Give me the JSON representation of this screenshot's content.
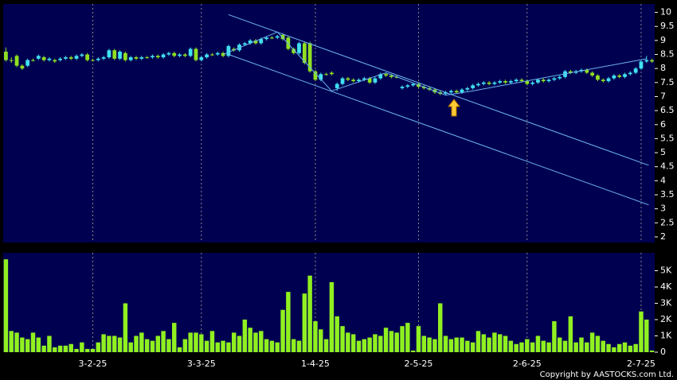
{
  "chart_data": {
    "type": "candlestick",
    "xlim": [
      -0.5,
      119.5
    ],
    "xticks": [
      {
        "value": 16,
        "label": "3-2-25"
      },
      {
        "value": 36,
        "label": "3-3-25"
      },
      {
        "value": 57,
        "label": "1-4-25"
      },
      {
        "value": 76,
        "label": "2-5-25"
      },
      {
        "value": 96,
        "label": "2-6-25"
      },
      {
        "value": 117,
        "label": "2-7-25"
      }
    ],
    "ylim": [
      1.8,
      10.3
    ],
    "yticks": [
      2,
      2.5,
      3,
      3.5,
      4,
      4.5,
      5,
      5.5,
      6,
      6.5,
      7,
      7.5,
      8,
      8.5,
      9,
      9.5,
      10
    ],
    "up_color": "#40e0f0",
    "down_color": "#90e020",
    "open": [
      8.6,
      8.3,
      8.45,
      8.1,
      8.1,
      8.3,
      8.35,
      8.4,
      8.3,
      8.3,
      8.3,
      8.35,
      8.4,
      8.35,
      8.45,
      8.5,
      8.3,
      8.3,
      8.35,
      8.4,
      8.65,
      8.35,
      8.55,
      8.3,
      8.4,
      8.35,
      8.4,
      8.4,
      8.45,
      8.4,
      8.5,
      8.55,
      8.45,
      8.5,
      8.45,
      8.7,
      8.3,
      8.4,
      8.5,
      8.5,
      8.55,
      8.45,
      8.7,
      8.65,
      8.85,
      8.9,
      9.0,
      8.9,
      9.05,
      9.1,
      9.1,
      9.2,
      9.1,
      8.7,
      8.55,
      8.9,
      8.9,
      7.9,
      7.6,
      7.8,
      7.85,
      7.3,
      7.45,
      7.65,
      7.6,
      7.55,
      7.6,
      7.65,
      7.5,
      7.65,
      7.8,
      7.75,
      7.7,
      7.3,
      7.35,
      7.4,
      7.45,
      7.35,
      7.3,
      7.25,
      7.15,
      7.1,
      7.15,
      7.2,
      7.15,
      7.25,
      7.3,
      7.4,
      7.45,
      7.5,
      7.45,
      7.5,
      7.55,
      7.5,
      7.55,
      7.6,
      7.55,
      7.45,
      7.5,
      7.6,
      7.55,
      7.6,
      7.65,
      7.7,
      7.9,
      7.85,
      7.9,
      7.95,
      7.85,
      7.75,
      7.6,
      7.55,
      7.65,
      7.75,
      7.7,
      7.8,
      7.85,
      8.0,
      8.25,
      8.3
    ],
    "high": [
      8.75,
      8.4,
      8.5,
      8.15,
      8.35,
      8.35,
      8.5,
      8.45,
      8.4,
      8.35,
      8.4,
      8.45,
      8.45,
      8.5,
      8.55,
      8.55,
      8.35,
      8.4,
      8.45,
      8.7,
      8.7,
      8.65,
      8.6,
      8.45,
      8.45,
      8.45,
      8.45,
      8.5,
      8.5,
      8.55,
      8.6,
      8.6,
      8.55,
      8.55,
      8.75,
      8.75,
      8.45,
      8.55,
      8.55,
      8.6,
      8.6,
      8.85,
      8.75,
      8.9,
      8.95,
      9.05,
      9.05,
      9.1,
      9.15,
      9.15,
      9.2,
      9.25,
      9.15,
      8.75,
      8.95,
      8.95,
      8.95,
      7.95,
      7.85,
      7.85,
      7.9,
      7.5,
      7.7,
      7.7,
      7.65,
      7.65,
      7.7,
      7.7,
      7.7,
      7.85,
      7.85,
      7.8,
      7.75,
      7.4,
      7.45,
      7.5,
      7.5,
      7.4,
      7.35,
      7.3,
      7.2,
      7.2,
      7.25,
      7.25,
      7.3,
      7.35,
      7.45,
      7.5,
      7.55,
      7.55,
      7.55,
      7.6,
      7.6,
      7.6,
      7.65,
      7.65,
      7.6,
      7.55,
      7.65,
      7.65,
      7.65,
      7.7,
      7.75,
      7.95,
      7.95,
      7.95,
      8.0,
      8.0,
      7.9,
      7.8,
      7.65,
      7.7,
      7.8,
      7.8,
      7.85,
      7.9,
      8.05,
      8.3,
      8.45,
      8.35
    ],
    "low": [
      8.25,
      8.2,
      8.05,
      7.95,
      8.05,
      8.25,
      8.3,
      8.25,
      8.25,
      8.2,
      8.25,
      8.3,
      8.3,
      8.3,
      8.4,
      8.25,
      8.25,
      8.25,
      8.3,
      8.35,
      8.3,
      8.3,
      8.25,
      8.25,
      8.3,
      8.3,
      8.35,
      8.35,
      8.35,
      8.35,
      8.45,
      8.4,
      8.4,
      8.4,
      8.4,
      8.25,
      8.25,
      8.35,
      8.45,
      8.45,
      8.4,
      8.4,
      8.6,
      8.6,
      8.8,
      8.85,
      8.85,
      8.85,
      9.0,
      9.05,
      9.05,
      9.0,
      8.65,
      8.5,
      8.5,
      8.15,
      7.85,
      7.55,
      7.55,
      7.75,
      7.75,
      7.2,
      7.4,
      7.55,
      7.5,
      7.5,
      7.55,
      7.45,
      7.45,
      7.6,
      7.7,
      7.65,
      7.65,
      7.25,
      7.3,
      7.35,
      7.3,
      7.25,
      7.2,
      7.1,
      7.05,
      7.05,
      7.1,
      7.1,
      7.1,
      7.2,
      7.25,
      7.35,
      7.4,
      7.4,
      7.4,
      7.45,
      7.45,
      7.45,
      7.5,
      7.5,
      7.4,
      7.4,
      7.45,
      7.5,
      7.5,
      7.55,
      7.6,
      7.65,
      7.8,
      7.8,
      7.85,
      7.8,
      7.7,
      7.55,
      7.5,
      7.5,
      7.6,
      7.65,
      7.65,
      7.75,
      7.8,
      7.95,
      8.2,
      8.2
    ],
    "close": [
      8.3,
      8.3,
      8.1,
      8.0,
      8.3,
      8.3,
      8.45,
      8.3,
      8.35,
      8.25,
      8.35,
      8.4,
      8.35,
      8.45,
      8.5,
      8.3,
      8.3,
      8.35,
      8.4,
      8.65,
      8.35,
      8.6,
      8.3,
      8.4,
      8.35,
      8.4,
      8.4,
      8.45,
      8.4,
      8.5,
      8.55,
      8.45,
      8.5,
      8.45,
      8.7,
      8.3,
      8.4,
      8.5,
      8.5,
      8.55,
      8.45,
      8.8,
      8.65,
      8.85,
      8.9,
      9.0,
      8.9,
      9.05,
      9.1,
      9.1,
      9.15,
      9.05,
      8.7,
      8.55,
      8.9,
      8.2,
      7.9,
      7.6,
      7.8,
      7.8,
      7.8,
      7.45,
      7.65,
      7.6,
      7.55,
      7.6,
      7.65,
      7.5,
      7.65,
      7.8,
      7.75,
      7.7,
      7.7,
      7.35,
      7.4,
      7.45,
      7.35,
      7.3,
      7.25,
      7.15,
      7.1,
      7.15,
      7.2,
      7.15,
      7.25,
      7.3,
      7.4,
      7.45,
      7.5,
      7.45,
      7.5,
      7.55,
      7.5,
      7.55,
      7.6,
      7.55,
      7.45,
      7.5,
      7.6,
      7.55,
      7.6,
      7.65,
      7.7,
      7.9,
      7.85,
      7.9,
      7.95,
      7.85,
      7.75,
      7.6,
      7.55,
      7.65,
      7.75,
      7.7,
      7.8,
      7.85,
      8.0,
      8.25,
      8.3,
      8.25
    ],
    "trendlines": [
      {
        "x": [
          41.0,
          118.4
        ],
        "y": [
          9.92,
          4.55
        ]
      },
      {
        "x": [
          41.0,
          118.4
        ],
        "y": [
          8.5,
          3.14
        ]
      },
      {
        "x": [
          40,
          50,
          60,
          70,
          81,
          86,
          118
        ],
        "y": [
          8.5,
          9.3,
          7.2,
          7.85,
          7.05,
          7.2,
          8.35
        ]
      }
    ],
    "trendline_color": "#6cb4f0",
    "volume": {
      "color": "#90f020",
      "ylim": [
        0,
        6100
      ],
      "yticks": [
        0,
        {
          "value": 1000,
          "label": "1K"
        },
        {
          "value": 2000,
          "label": "2K"
        },
        {
          "value": 3000,
          "label": "3K"
        },
        {
          "value": 4000,
          "label": "4K"
        },
        {
          "value": 5000,
          "label": "5K"
        }
      ],
      "values": [
        5700,
        1300,
        1200,
        900,
        800,
        1200,
        900,
        400,
        1000,
        300,
        400,
        400,
        500,
        200,
        600,
        200,
        200,
        600,
        1100,
        1000,
        1000,
        900,
        3000,
        600,
        1000,
        1200,
        800,
        700,
        1000,
        1300,
        800,
        1800,
        300,
        800,
        1200,
        1200,
        1100,
        700,
        1300,
        600,
        700,
        600,
        1200,
        1000,
        2000,
        1500,
        1200,
        1300,
        800,
        700,
        600,
        2600,
        3700,
        800,
        700,
        3600,
        4700,
        1900,
        1400,
        800,
        4300,
        2200,
        1600,
        1200,
        1100,
        700,
        800,
        900,
        1100,
        1000,
        1500,
        1300,
        1200,
        1600,
        1800,
        100,
        1600,
        1000,
        900,
        800,
        3000,
        1000,
        800,
        900,
        900,
        700,
        600,
        1300,
        1100,
        900,
        1200,
        1100,
        1000,
        700,
        500,
        600,
        800,
        600,
        1000,
        700,
        600,
        1900,
        900,
        700,
        2200,
        600,
        900,
        600,
        1200,
        1000,
        700,
        500,
        300,
        500,
        600,
        400,
        500,
        2500,
        2000,
        100
      ]
    },
    "copyright": "Copyright by AASTOCKS.com Ltd."
  }
}
